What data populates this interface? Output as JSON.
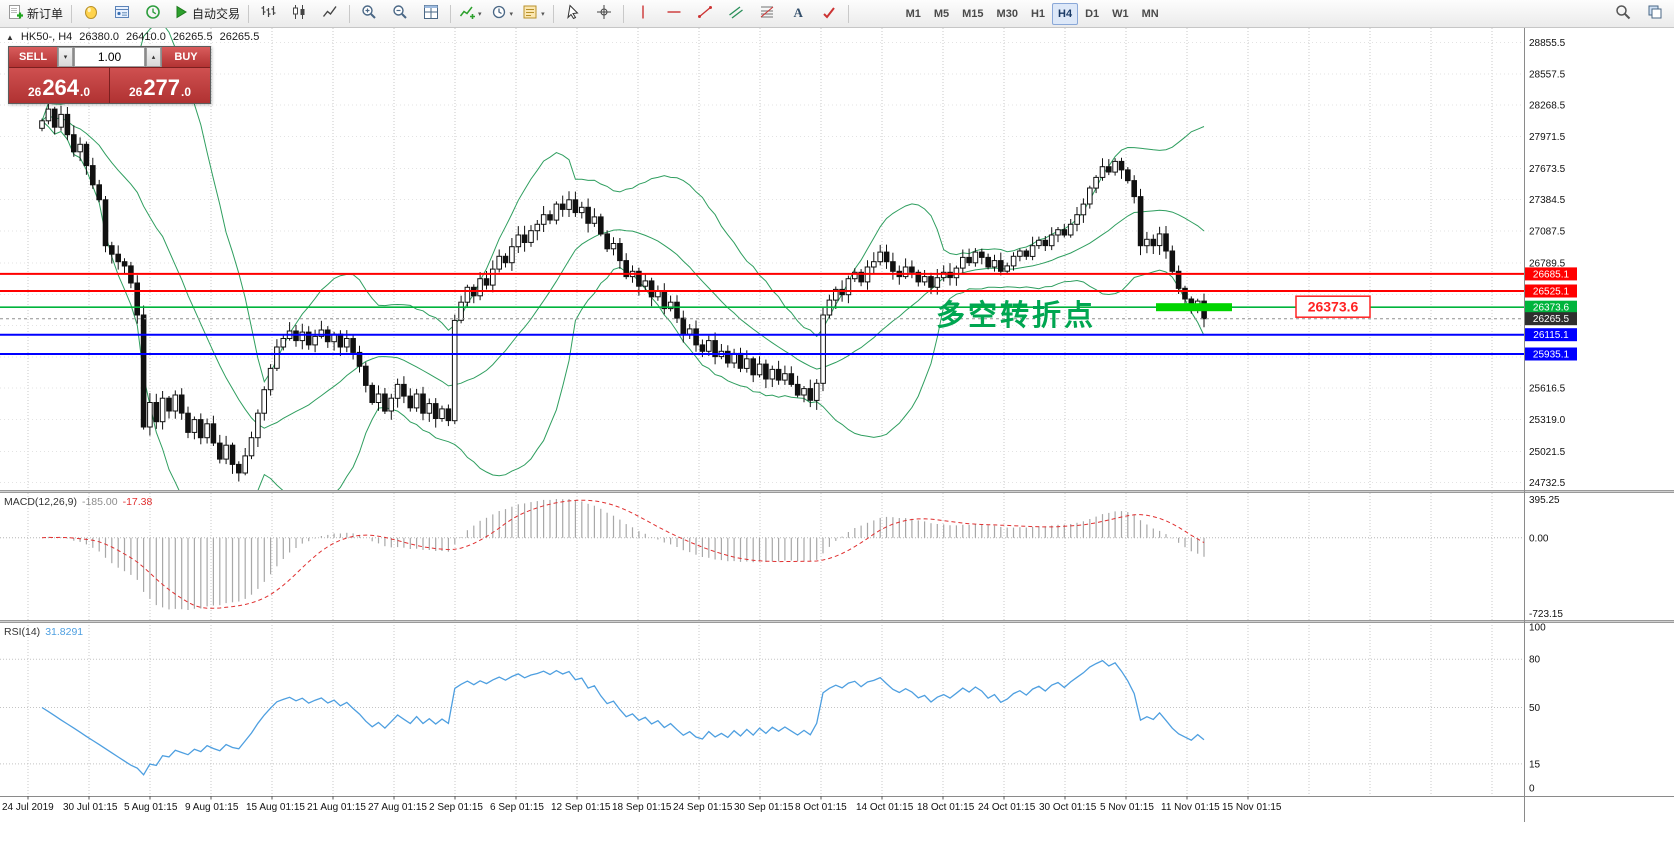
{
  "window": {
    "toolbar_bg": "#ebebeb",
    "chart_bg": "#ffffff",
    "grid_color": "#cccccc"
  },
  "toolbar": {
    "buttons": [
      {
        "icon": "new-order-icon",
        "label": "新订单"
      },
      {
        "sep": true
      },
      {
        "icon": "metaeditor-icon"
      },
      {
        "icon": "data-window-icon"
      },
      {
        "icon": "navigator-icon"
      },
      {
        "icon": "autotrade-icon",
        "label": "自动交易"
      },
      {
        "sep": true
      },
      {
        "icon": "bar-chart-icon"
      },
      {
        "icon": "candlestick-icon"
      },
      {
        "icon": "line-chart-icon"
      },
      {
        "sep": true
      },
      {
        "icon": "zoom-in-icon"
      },
      {
        "icon": "zoom-out-icon"
      },
      {
        "icon": "tile-windows-icon"
      },
      {
        "sep": true
      },
      {
        "icon": "indicators-icon",
        "caret": true
      },
      {
        "icon": "periods-icon",
        "caret": true
      },
      {
        "icon": "templates-icon",
        "caret": true
      },
      {
        "sep": true
      },
      {
        "icon": "cursor-icon"
      },
      {
        "icon": "crosshair-icon"
      },
      {
        "sep": true
      },
      {
        "icon": "vertical-line-icon"
      },
      {
        "icon": "horizontal-line-icon"
      },
      {
        "icon": "trendline-icon"
      },
      {
        "icon": "channel-icon"
      },
      {
        "icon": "fibonacci-icon"
      },
      {
        "icon": "text-icon"
      },
      {
        "icon": "arrows-icon"
      },
      {
        "sep": true
      }
    ],
    "timeframes": {
      "items": [
        "M1",
        "M5",
        "M15",
        "M30",
        "H1",
        "H4",
        "D1",
        "W1",
        "MN"
      ],
      "active": "H4"
    },
    "right_buttons": [
      {
        "icon": "search-icon"
      },
      {
        "icon": "layers-icon"
      }
    ]
  },
  "chart": {
    "collapse_arrow": "▲",
    "title_text": "HK50-, H4",
    "one_click": {
      "sell_label": "SELL",
      "buy_label": "BUY",
      "volume": "1.00",
      "sell_price": "26264.0",
      "buy_price": "26277.0",
      "panel_red": "#c04040"
    }
  },
  "chart_data": {
    "type": "candlestick",
    "symbol": "HK50-",
    "timeframe": "H4",
    "ohlc_display": {
      "open": "26380.0",
      "high": "26410.0",
      "low": "26265.5",
      "close": "26265.5"
    },
    "ylim": [
      24660,
      28990
    ],
    "y_ticks": [
      {
        "v": 28855.5,
        "t": "28855.5"
      },
      {
        "v": 28557.5,
        "t": "28557.5"
      },
      {
        "v": 28268.5,
        "t": "28268.5"
      },
      {
        "v": 27971.5,
        "t": "27971.5"
      },
      {
        "v": 27673.5,
        "t": "27673.5"
      },
      {
        "v": 27384.5,
        "t": "27384.5"
      },
      {
        "v": 27087.5,
        "t": "27087.5"
      },
      {
        "v": 26789.5,
        "t": "26789.5"
      },
      {
        "v": 25616.5,
        "t": "25616.5"
      },
      {
        "v": 25319.0,
        "t": "25319.0"
      },
      {
        "v": 25021.5,
        "t": "25021.5"
      },
      {
        "v": 24732.5,
        "t": "24732.5"
      }
    ],
    "grid_only_ticks": [
      26494.5,
      26199.5,
      25904.5
    ],
    "x_labels": [
      "24 Jul 2019",
      "30 Jul 01:15",
      "5 Aug 01:15",
      "9 Aug 01:15",
      "15 Aug 01:15",
      "21 Aug 01:15",
      "27 Aug 01:15",
      "2 Sep 01:15",
      "6 Sep 01:15",
      "12 Sep 01:15",
      "18 Sep 01:15",
      "24 Sep 01:15",
      "30 Sep 01:15",
      "8 Oct 01:15",
      "14 Oct 01:15",
      "18 Oct 01:15",
      "24 Oct 01:15",
      "30 Oct 01:15",
      "5 Nov 01:15",
      "11 Nov 01:15",
      "15 Nov 01:15"
    ],
    "closes": [
      28120,
      28230,
      28060,
      28180,
      27990,
      27830,
      27900,
      27700,
      27520,
      27380,
      26950,
      26870,
      26800,
      26760,
      26600,
      26300,
      25250,
      25480,
      25300,
      25520,
      25400,
      25550,
      25380,
      25200,
      25320,
      25150,
      25280,
      25100,
      24950,
      25080,
      24900,
      24820,
      24980,
      25150,
      25380,
      25600,
      25800,
      26000,
      26080,
      26150,
      26060,
      26140,
      26020,
      26100,
      26160,
      26050,
      26120,
      26000,
      26080,
      25950,
      25820,
      25640,
      25480,
      25560,
      25400,
      25520,
      25650,
      25540,
      25430,
      25560,
      25380,
      25470,
      25330,
      25420,
      25310,
      26250,
      26420,
      26560,
      26480,
      26640,
      26580,
      26730,
      26850,
      26790,
      26940,
      27050,
      26980,
      27090,
      27150,
      27240,
      27190,
      27340,
      27290,
      27380,
      27260,
      27310,
      27160,
      27220,
      27060,
      26920,
      26970,
      26810,
      26660,
      26710,
      26570,
      26620,
      26470,
      26520,
      26360,
      26420,
      26270,
      26120,
      26170,
      26020,
      25960,
      26060,
      25910,
      25960,
      25850,
      25940,
      25800,
      25890,
      25740,
      25840,
      25700,
      25790,
      25690,
      25750,
      25650,
      25550,
      25610,
      25500,
      25660,
      26300,
      26440,
      26540,
      26490,
      26640,
      26700,
      26610,
      26750,
      26800,
      26890,
      26800,
      26710,
      26660,
      26750,
      26700,
      26610,
      26660,
      26560,
      26650,
      26700,
      26650,
      26740,
      26840,
      26790,
      26890,
      26840,
      26750,
      26810,
      26710,
      26760,
      26850,
      26900,
      26850,
      26950,
      27000,
      26950,
      27050,
      27100,
      27050,
      27150,
      27240,
      27340,
      27490,
      27590,
      27690,
      27640,
      27740,
      27660,
      27560,
      27410,
      26950,
      27010,
      26950,
      27060,
      26900,
      26710,
      26550,
      26450,
      26350,
      26430,
      26265.5
    ],
    "styles": {
      "up_color": "#ffffff",
      "down_color": "#111111",
      "outline": "#111111",
      "band_color": "#2f9e5f"
    },
    "levels": [
      {
        "value": 26685.1,
        "label": "26685.1",
        "color": "#ff0000",
        "type": "hline"
      },
      {
        "value": 26525.1,
        "label": "26525.1",
        "color": "#ff0000",
        "type": "hline"
      },
      {
        "value": 26373.6,
        "label": "26373.6",
        "color": "#00b43c",
        "type": "hline",
        "highlight": true
      },
      {
        "value": 26265.5,
        "label": "26265.5",
        "color": "#2f2f2f",
        "type": "price"
      },
      {
        "value": 26115.1,
        "label": "26115.1",
        "color": "#0000ff",
        "type": "hline"
      },
      {
        "value": 25935.1,
        "label": "25935.1",
        "color": "#0000ff",
        "type": "hline"
      }
    ],
    "highlight_segment": {
      "value": 26373.6,
      "x_from": 1156,
      "x_to": 1232,
      "color": "#00d400"
    },
    "annotation": {
      "text": "多空转折点",
      "color": "#00a651"
    },
    "callout": {
      "text": "26373.6",
      "color": "#ff2222"
    },
    "indicators": {
      "bollinger": {
        "label": "Bands",
        "period": 20,
        "deviation": 2,
        "color": "#2f9e5f"
      },
      "macd": {
        "label": "MACD(12,26,9)",
        "main_value": "-185.00",
        "signal_value": "-17.38",
        "axis": {
          "max": "395.25",
          "zero": "0.00",
          "min": "-723.15"
        },
        "fast": 12,
        "slow": 26,
        "signal_period": 9,
        "hist_color": "#a8a8a8",
        "signal_color": "#e03030"
      },
      "rsi": {
        "label": "RSI(14)",
        "value": "31.8291",
        "period": 14,
        "color": "#4e9fe0",
        "axis": [
          {
            "v": 100,
            "t": "100"
          },
          {
            "v": 80,
            "t": "80"
          },
          {
            "v": 50,
            "t": "50"
          },
          {
            "v": 15,
            "t": "15"
          },
          {
            "v": 0,
            "t": "0"
          }
        ],
        "levels": [
          80,
          50,
          15
        ]
      }
    }
  }
}
